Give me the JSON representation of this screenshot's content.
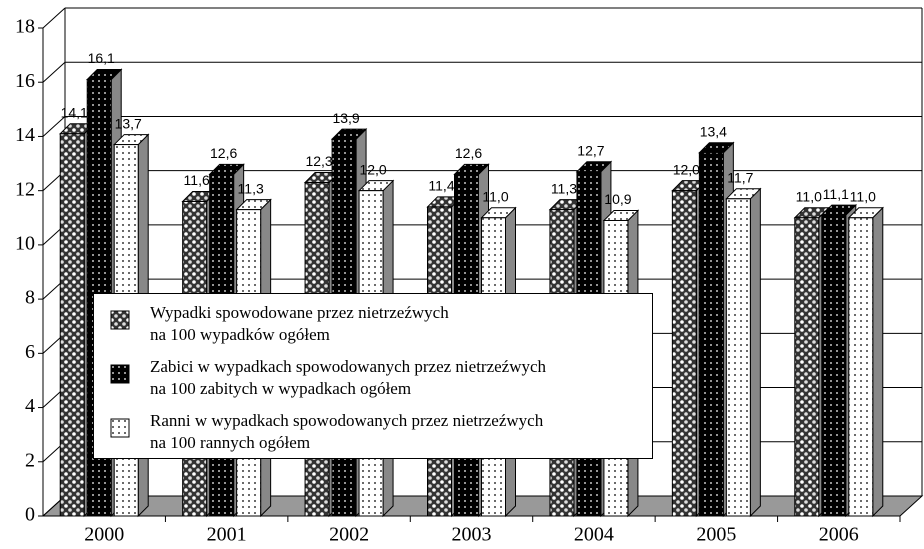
{
  "chart_data": {
    "type": "bar3d",
    "categories": [
      "2000",
      "2001",
      "2002",
      "2003",
      "2004",
      "2005",
      "2006"
    ],
    "series": [
      {
        "name": "Wypadki spowodowane przez nietrzeźwych\nna 100 wypadków ogółem",
        "color": "#333333",
        "values": [
          14.1,
          11.6,
          12.3,
          11.4,
          11.3,
          12.0,
          11.0
        ],
        "value_labels": [
          "14,1",
          "11,6",
          "12,3",
          "11,4",
          "11,3",
          "12,0",
          "11,0"
        ]
      },
      {
        "name": "Zabici w wypadkach spowodowanych przez nietrzeźwych\nna 100 zabitych w wypadkach ogółem",
        "color": "#000000",
        "values": [
          16.1,
          12.6,
          13.9,
          12.6,
          12.7,
          13.4,
          11.1
        ],
        "value_labels": [
          "16,1",
          "12,6",
          "13,9",
          "12,6",
          "12,7",
          "13,4",
          "11,1"
        ]
      },
      {
        "name": "Ranni w wypadkach spowodowanych przez nietrzeźwych\nna 100 rannych ogółem",
        "color": "#ffffff",
        "values": [
          13.7,
          11.3,
          12.0,
          11.0,
          10.9,
          11.7,
          11.0
        ],
        "value_labels": [
          "13,7",
          "11,3",
          "12,0",
          "11,0",
          "10,9",
          "11,7",
          "11,0"
        ]
      }
    ],
    "ylim": [
      0,
      18
    ],
    "yticks": [
      0,
      2,
      4,
      6,
      8,
      10,
      12,
      14,
      16,
      18
    ],
    "grid": true
  }
}
